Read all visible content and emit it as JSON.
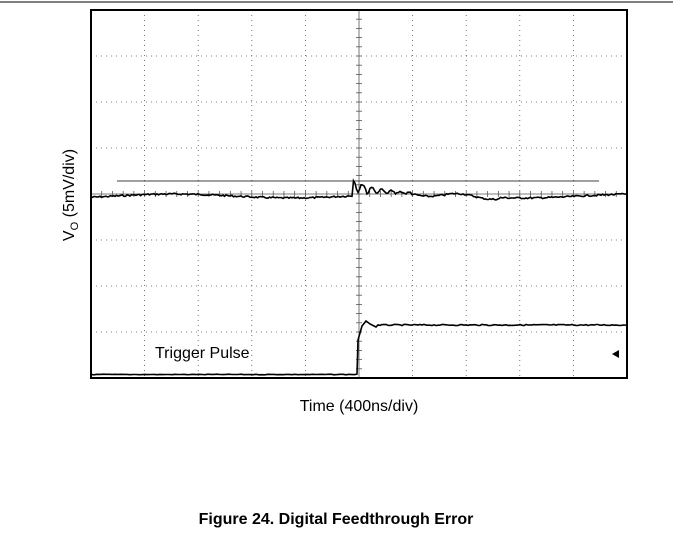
{
  "figure": {
    "y_label": {
      "main": "V",
      "sub": "O",
      "rest": " (5mV/div)"
    },
    "x_label": "Time (400ns/div)",
    "annotation": "Trigger Pulse",
    "caption": "Figure 24. Digital Feedthrough Error"
  }
}
